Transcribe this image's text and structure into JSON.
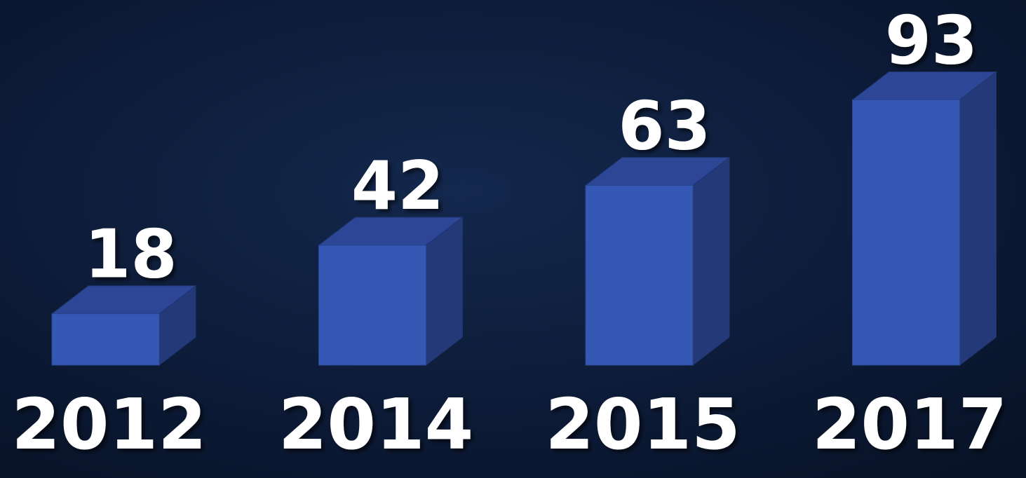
{
  "chart_data": {
    "type": "bar3d",
    "categories": [
      "2012",
      "2014",
      "2015",
      "2017"
    ],
    "values": [
      18,
      42,
      63,
      93
    ],
    "colors": {
      "front": "#3558b5",
      "top": "#2d4796",
      "side": "#243a78"
    }
  }
}
